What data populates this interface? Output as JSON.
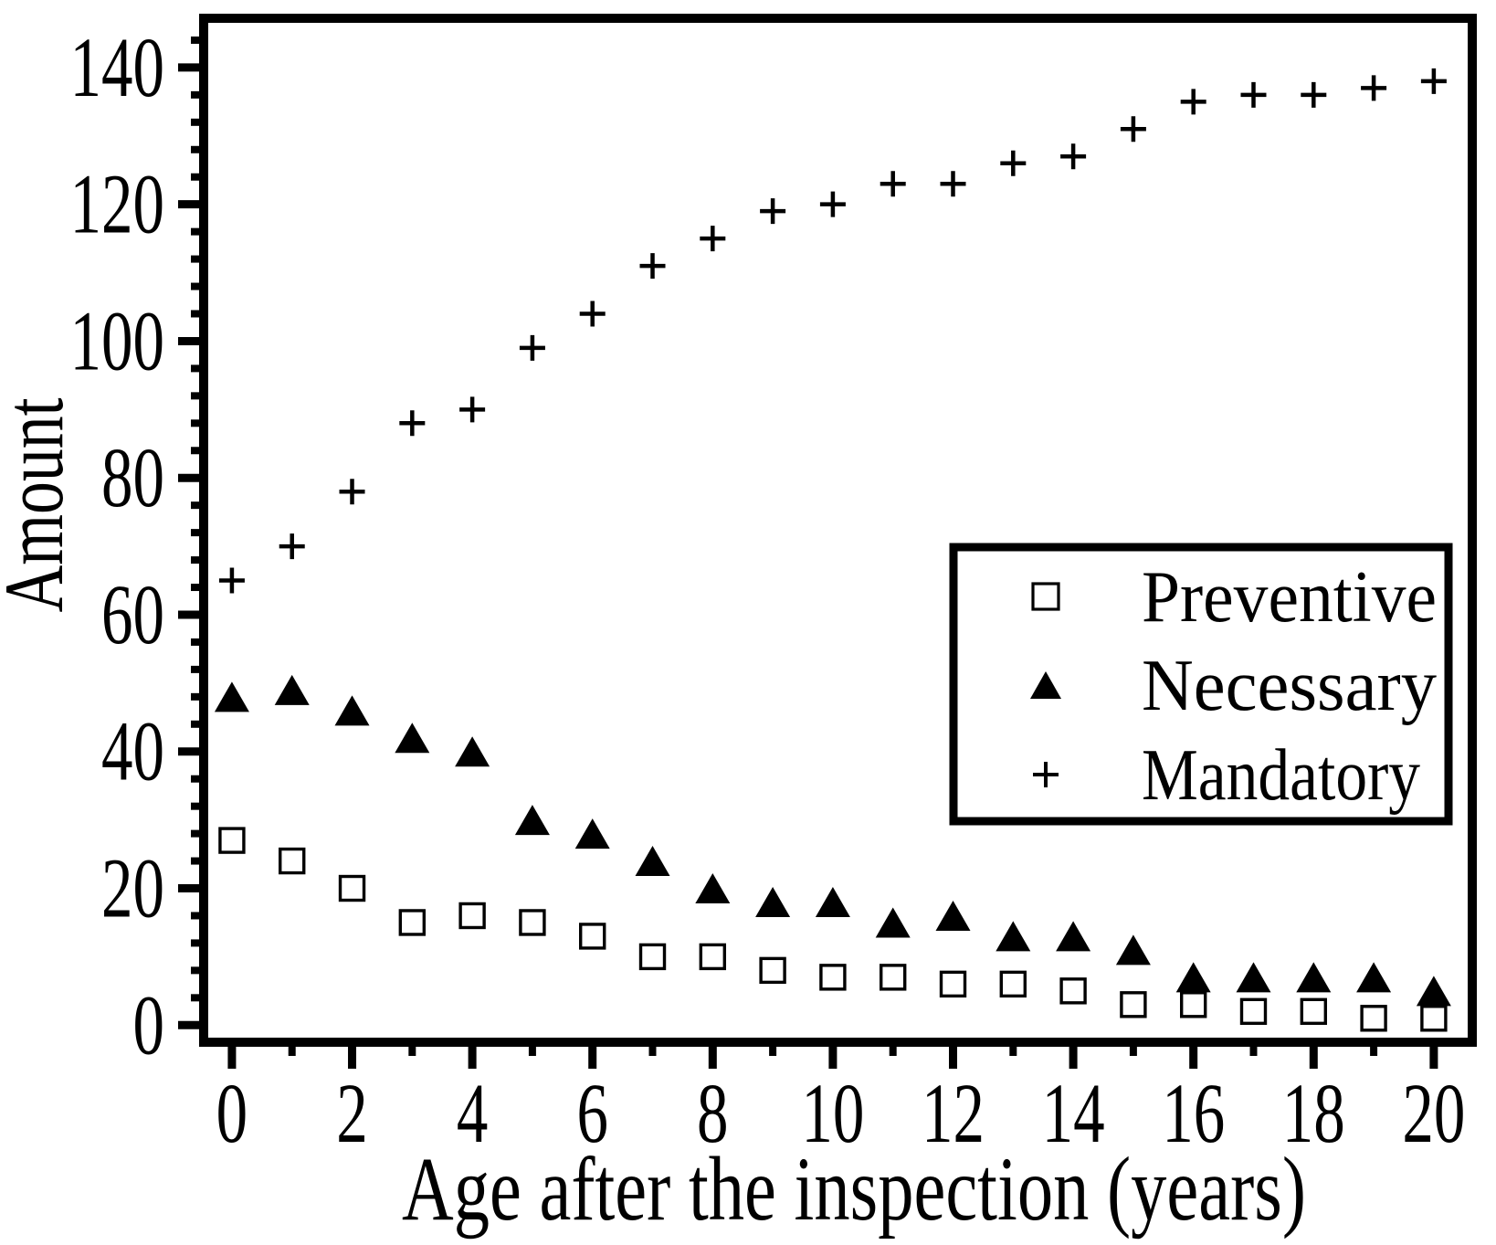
{
  "chart_data": {
    "type": "scatter",
    "title": "",
    "xlabel": "Age after the inspection (years)",
    "ylabel": "Amount",
    "x": [
      0,
      1,
      2,
      3,
      4,
      5,
      6,
      7,
      8,
      9,
      10,
      11,
      12,
      13,
      14,
      15,
      16,
      17,
      18,
      19,
      20
    ],
    "series": [
      {
        "name": "Preventive",
        "marker": "square-open",
        "values": [
          27,
          24,
          20,
          15,
          16,
          15,
          13,
          10,
          10,
          8,
          7,
          7,
          6,
          6,
          5,
          3,
          3,
          2,
          2,
          1,
          1
        ]
      },
      {
        "name": "Necessary",
        "marker": "triangle-filled",
        "values": [
          48,
          49,
          46,
          42,
          40,
          30,
          28,
          24,
          20,
          18,
          18,
          15,
          16,
          13,
          13,
          11,
          7,
          7,
          7,
          7,
          5
        ]
      },
      {
        "name": "Mandatory",
        "marker": "plus",
        "values": [
          65,
          70,
          78,
          88,
          90,
          99,
          104,
          111,
          115,
          119,
          120,
          123,
          123,
          126,
          127,
          131,
          135,
          136,
          136,
          137,
          138
        ]
      }
    ],
    "xlim": [
      -0.47,
      20.64
    ],
    "ylim": [
      -2.5,
      147.2
    ],
    "x_major_ticks": [
      0,
      2,
      4,
      6,
      8,
      10,
      12,
      14,
      16,
      18,
      20
    ],
    "x_tick_labels": [
      "0",
      "2",
      "4",
      "6",
      "8",
      "10",
      "12",
      "14",
      "16",
      "18",
      "20"
    ],
    "x_minor_step": 1,
    "y_major_ticks": [
      0,
      20,
      40,
      60,
      80,
      100,
      120,
      140
    ],
    "y_tick_labels": [
      "0",
      "20",
      "40",
      "60",
      "80",
      "100",
      "120",
      "140"
    ],
    "y_minor_step": 4,
    "grid": false,
    "legend_position": "right-middle",
    "colors": {
      "foreground": "#000000",
      "background": "#ffffff"
    }
  }
}
